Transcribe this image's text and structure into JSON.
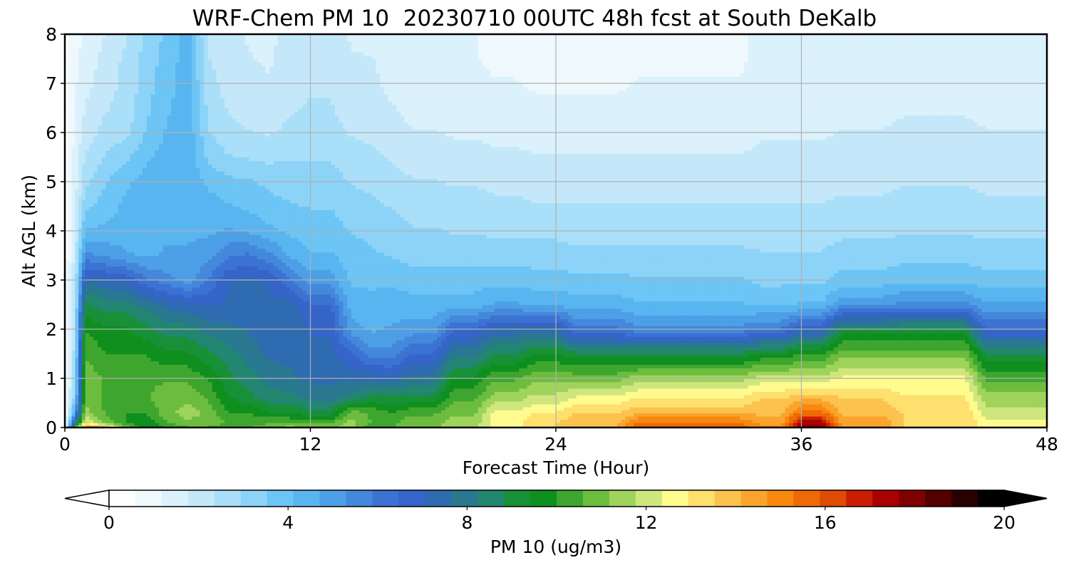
{
  "chart_data": {
    "type": "heatmap",
    "title": "WRF-Chem PM 10  20230710 00UTC 48h fcst at South DeKalb",
    "xlabel": "Forecast Time (Hour)",
    "ylabel": "Alt AGL (km)",
    "xlim": [
      0,
      48
    ],
    "ylim": [
      0,
      8
    ],
    "x_ticks": [
      0,
      12,
      24,
      36,
      48
    ],
    "y_ticks": [
      0,
      1,
      2,
      3,
      4,
      5,
      6,
      7,
      8
    ],
    "grid": true,
    "x": [
      0,
      0.5,
      1,
      2,
      3,
      4,
      5,
      6,
      7,
      8,
      9,
      10,
      11,
      12,
      13,
      14,
      15,
      16,
      17,
      18,
      19,
      20,
      21,
      22,
      23,
      24,
      25,
      26,
      27,
      28,
      29,
      30,
      31,
      32,
      33,
      34,
      35,
      36,
      37,
      38,
      39,
      40,
      41,
      42,
      43,
      44,
      45,
      46,
      47,
      48
    ],
    "y": [
      0,
      0.1,
      0.3,
      0.6,
      1.0,
      1.5,
      2.0,
      2.5,
      3.0,
      3.5,
      4.0,
      4.5,
      5.0,
      5.5,
      6.0,
      6.5,
      7.0,
      7.5,
      8.0
    ],
    "profiles": {
      "p0": [
        0.3,
        0.3,
        0.3,
        0.3,
        0.3,
        0.3,
        0.3,
        0.3,
        0.3,
        0.3,
        0.3,
        0.3,
        0.3,
        0.3,
        0.3,
        0.3,
        0.3,
        0.3,
        0.3
      ],
      "p1": [
        10.5,
        8.0,
        5.0,
        3.5,
        3.0,
        2.8,
        2.6,
        2.4,
        2.2,
        2.0,
        1.8,
        1.6,
        1.5,
        1.4,
        1.3,
        1.2,
        1.1,
        1.0,
        1.0
      ],
      "p2": [
        15.5,
        12.5,
        11.5,
        11.0,
        11.0,
        10.5,
        10.0,
        9.0,
        7.5,
        5.5,
        4.2,
        3.4,
        2.8,
        2.4,
        2.0,
        1.8,
        1.6,
        1.4,
        1.3
      ],
      "p3": [
        14.5,
        11.0,
        10.5,
        10.5,
        10.5,
        10.0,
        9.5,
        8.5,
        7.2,
        5.2,
        4.3,
        3.8,
        3.5,
        3.0,
        2.6,
        2.3,
        2.1,
        2.0,
        1.8
      ],
      "p4": [
        11.0,
        10.0,
        10.0,
        10.5,
        10.5,
        10.0,
        9.5,
        8.5,
        7.0,
        4.8,
        4.4,
        4.3,
        4.0,
        3.4,
        2.8,
        2.6,
        2.5,
        2.5,
        2.3
      ],
      "p5": [
        9.5,
        9.5,
        10.0,
        10.5,
        10.5,
        10.0,
        9.0,
        8.0,
        6.0,
        4.6,
        4.4,
        4.5,
        4.4,
        4.0,
        3.6,
        3.4,
        3.3,
        3.2,
        3.0
      ],
      "p6": [
        10.0,
        10.5,
        11.0,
        11.0,
        10.5,
        9.5,
        8.5,
        7.5,
        5.5,
        4.8,
        4.6,
        4.6,
        4.6,
        4.4,
        4.2,
        4.0,
        3.9,
        3.8,
        3.7
      ],
      "p7": [
        10.5,
        11.0,
        11.5,
        11.0,
        10.5,
        9.5,
        8.5,
        7.2,
        5.0,
        4.8,
        4.6,
        4.6,
        4.6,
        4.6,
        4.6,
        4.5,
        4.5,
        4.4,
        4.4
      ],
      "p8": [
        10.5,
        11.0,
        11.0,
        10.5,
        10.0,
        9.0,
        8.0,
        7.0,
        6.0,
        5.0,
        4.6,
        4.4,
        4.0,
        3.4,
        3.0,
        2.8,
        2.6,
        2.4,
        2.3
      ],
      "p9": [
        10.0,
        10.5,
        10.0,
        9.5,
        9.0,
        8.5,
        7.8,
        7.2,
        7.0,
        5.8,
        4.8,
        4.2,
        3.7,
        3.0,
        2.5,
        2.3,
        2.1,
        2.0,
        1.9
      ],
      "p10": [
        10.5,
        10.5,
        10.0,
        9.0,
        8.5,
        8.0,
        7.6,
        7.4,
        7.2,
        6.0,
        4.6,
        4.0,
        3.6,
        2.9,
        2.4,
        2.1,
        1.9,
        1.8,
        1.7
      ],
      "p11": [
        11.0,
        10.5,
        9.5,
        8.5,
        8.0,
        7.5,
        7.2,
        7.2,
        7.0,
        5.5,
        4.3,
        3.7,
        3.4,
        2.8,
        2.3,
        2.0,
        1.8,
        1.7,
        1.6
      ],
      "p12": [
        11.5,
        10.5,
        9.5,
        8.5,
        7.8,
        7.5,
        7.5,
        7.3,
        6.0,
        4.6,
        4.0,
        3.6,
        3.3,
        2.9,
        2.5,
        2.3,
        2.2,
        2.1,
        2.0
      ],
      "p13": [
        11.0,
        10.5,
        9.0,
        8.0,
        7.5,
        7.2,
        7.0,
        6.5,
        5.0,
        4.2,
        3.8,
        3.5,
        3.2,
        2.9,
        2.6,
        2.4,
        2.3,
        2.2,
        2.1
      ],
      "p14": [
        11.5,
        11.5,
        11.0,
        8.5,
        7.5,
        6.5,
        5.0,
        4.4,
        4.0,
        3.8,
        3.5,
        3.2,
        2.9,
        2.6,
        2.3,
        2.1,
        2.0,
        1.8,
        1.7
      ],
      "p15": [
        10.0,
        10.5,
        10.5,
        9.0,
        7.5,
        5.5,
        4.6,
        4.3,
        4.0,
        3.6,
        3.4,
        3.1,
        2.8,
        2.5,
        2.2,
        2.0,
        1.9,
        1.8,
        1.6
      ],
      "p16": [
        10.5,
        10.5,
        10.0,
        9.0,
        7.4,
        5.5,
        4.8,
        4.4,
        4.0,
        3.5,
        3.2,
        2.9,
        2.6,
        2.3,
        2.0,
        1.8,
        1.6,
        1.5,
        1.4
      ],
      "p17": [
        11.0,
        11.0,
        10.5,
        9.0,
        7.8,
        6.5,
        5.0,
        4.4,
        3.8,
        3.3,
        3.0,
        2.7,
        2.4,
        2.1,
        1.8,
        1.6,
        1.4,
        1.3,
        1.2
      ],
      "p18": [
        11.5,
        11.5,
        11.0,
        10.5,
        9.5,
        8.0,
        6.5,
        4.4,
        3.8,
        3.3,
        2.9,
        2.6,
        2.3,
        2.0,
        1.7,
        1.5,
        1.3,
        1.2,
        1.2
      ],
      "p19": [
        12.5,
        12.5,
        12.5,
        11.5,
        10.5,
        8.8,
        7.3,
        4.8,
        3.9,
        3.3,
        2.8,
        2.5,
        2.2,
        1.9,
        1.6,
        1.4,
        1.2,
        1.1,
        1.1
      ],
      "p20": [
        13.5,
        13.5,
        13.0,
        12.0,
        11.0,
        9.5,
        7.5,
        4.6,
        3.8,
        3.2,
        2.8,
        2.4,
        2.1,
        1.8,
        1.5,
        1.3,
        1.1,
        1.0,
        1.0
      ],
      "p21": [
        14.0,
        14.0,
        13.5,
        12.5,
        11.0,
        9.0,
        6.0,
        4.4,
        3.7,
        3.1,
        2.7,
        2.4,
        2.1,
        1.8,
        1.5,
        1.3,
        1.1,
        1.0,
        1.0
      ],
      "p22": [
        15.5,
        15.5,
        14.0,
        13.0,
        11.5,
        9.0,
        5.5,
        4.2,
        3.6,
        3.1,
        2.7,
        2.4,
        2.1,
        1.8,
        1.5,
        1.3,
        1.2,
        1.1,
        1.1
      ],
      "p23": [
        15.0,
        14.5,
        14.0,
        13.5,
        12.0,
        9.5,
        6.0,
        4.0,
        3.4,
        3.0,
        2.7,
        2.4,
        2.1,
        1.9,
        1.7,
        1.5,
        1.4,
        1.3,
        1.3
      ],
      "p24": [
        18.0,
        17.5,
        15.5,
        14.0,
        12.0,
        10.0,
        7.0,
        4.2,
        3.4,
        3.0,
        2.7,
        2.4,
        2.1,
        1.9,
        1.7,
        1.5,
        1.4,
        1.3,
        1.3
      ],
      "p25": [
        14.5,
        14.5,
        14.0,
        13.5,
        12.5,
        11.0,
        9.0,
        5.2,
        3.8,
        3.2,
        2.8,
        2.5,
        2.2,
        2.0,
        1.8,
        1.6,
        1.5,
        1.4,
        1.4
      ],
      "p26": [
        13.5,
        13.5,
        13.5,
        13.0,
        12.5,
        11.0,
        9.0,
        5.5,
        4.0,
        3.3,
        2.9,
        2.6,
        2.3,
        2.1,
        1.9,
        1.7,
        1.6,
        1.5,
        1.5
      ],
      "p27": [
        12.5,
        12.5,
        12.0,
        11.5,
        10.5,
        9.0,
        6.5,
        4.8,
        3.8,
        3.2,
        2.8,
        2.5,
        2.2,
        2.0,
        1.8,
        1.6,
        1.5,
        1.4,
        1.4
      ]
    },
    "columns": [
      "p0",
      "p1",
      "p2",
      "p3",
      "p4",
      "p5",
      "p6",
      "p7",
      "p8",
      "p9",
      "p10",
      "p11",
      "p12",
      "p13",
      "p13",
      "p14",
      "p15",
      "p16",
      "p17",
      "p17",
      "p18",
      "p18",
      "p19",
      "p19",
      "p20",
      "p20",
      "p21",
      "p21",
      "p21",
      "p22",
      "p22",
      "p22",
      "p22",
      "p22",
      "p22",
      "p23",
      "p23",
      "p24",
      "p24",
      "p25",
      "p25",
      "p25",
      "p26",
      "p26",
      "p26",
      "p26",
      "p27",
      "p27",
      "p27",
      "p27"
    ],
    "colorbar": {
      "label": "PM 10  (ug/m3)",
      "ticks": [
        0,
        4,
        8,
        12,
        16,
        20
      ],
      "range": [
        0,
        20
      ],
      "extend": "both",
      "colors": [
        "#ffffff",
        "#eef8fd",
        "#dbf1fb",
        "#c4e8fa",
        "#aadff9",
        "#8dd3f8",
        "#6cc5f5",
        "#59b5f0",
        "#4d9fe6",
        "#4488dc",
        "#3c72d1",
        "#3565c8",
        "#2f6bb0",
        "#297890",
        "#238670",
        "#189038",
        "#0e8f1e",
        "#3ea62e",
        "#6cbd3f",
        "#9fd35b",
        "#cfe67e",
        "#fffb8e",
        "#fde06e",
        "#fcc24e",
        "#faa42e",
        "#f8880e",
        "#ee6a06",
        "#df4a04",
        "#cc1c02",
        "#aa0000",
        "#7e0000",
        "#520000",
        "#280000",
        "#000000"
      ]
    }
  }
}
